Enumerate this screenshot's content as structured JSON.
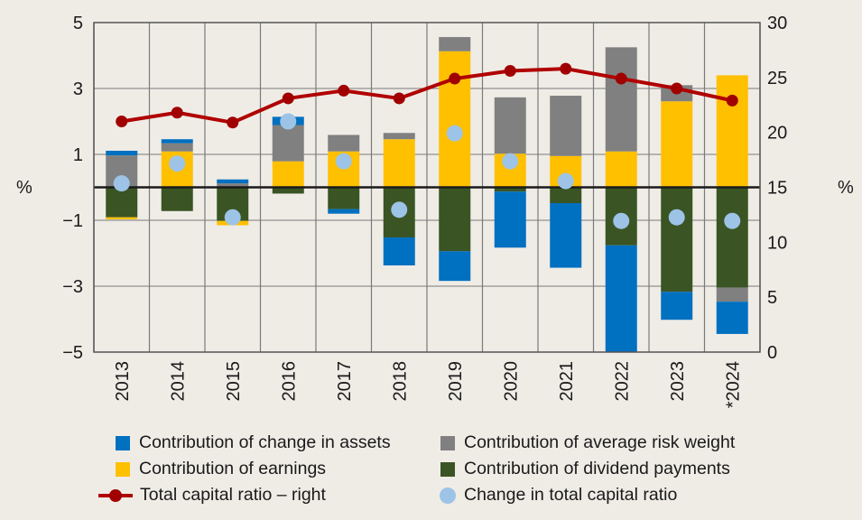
{
  "chart_data": {
    "type": "bar",
    "title": "",
    "xlabel": "",
    "ylabel": "%",
    "ylabel_right": "%",
    "stacked": true,
    "categories": [
      "2013",
      "2014",
      "2015",
      "2016",
      "2017",
      "2018",
      "2019",
      "2020",
      "2021",
      "2022",
      "2023",
      "*2024"
    ],
    "ylim": [
      -5,
      5
    ],
    "yticks": [
      "5",
      "3",
      "1",
      "−1",
      "−3",
      "−5"
    ],
    "ytick_values": [
      5,
      3,
      1,
      -1,
      -3,
      -5
    ],
    "ylim_right": [
      0,
      30
    ],
    "yticks_right": [
      "30",
      "25",
      "20",
      "15",
      "10",
      "5",
      "0"
    ],
    "ytick_values_right": [
      30,
      25,
      20,
      15,
      10,
      5,
      0
    ],
    "grid": true,
    "legend_position": "bottom",
    "series": [
      {
        "name": "Contribution of change in assets",
        "kind": "bar",
        "color": "#0070c0",
        "values": [
          0.14,
          0.12,
          0.12,
          0.25,
          -0.14,
          -0.85,
          -0.9,
          -1.7,
          -1.96,
          -3.24,
          -0.85,
          -0.98
        ]
      },
      {
        "name": "Contribution of earnings",
        "kind": "bar",
        "color": "#ffc000",
        "values": [
          -0.06,
          1.09,
          -0.13,
          0.79,
          1.09,
          1.46,
          4.13,
          1.02,
          0.95,
          1.09,
          2.61,
          3.4
        ]
      },
      {
        "name": "Contribution of average risk weight",
        "kind": "bar",
        "color": "#808080",
        "values": [
          0.97,
          0.25,
          0.12,
          1.1,
          0.5,
          0.19,
          0.43,
          1.71,
          1.83,
          3.16,
          0.49,
          -0.43
        ]
      },
      {
        "name": "Contribution of dividend payments",
        "kind": "bar",
        "color": "#3a5424",
        "values": [
          -0.91,
          -0.72,
          -1.02,
          -0.19,
          -0.66,
          -1.52,
          -1.94,
          -0.13,
          -0.48,
          -1.76,
          -3.17,
          -3.04
        ]
      },
      {
        "name": "Total capital ratio – right",
        "kind": "line",
        "axis": "right",
        "color": "#b00000",
        "values": [
          21.0,
          21.8,
          20.9,
          23.1,
          23.8,
          23.1,
          24.9,
          25.6,
          25.8,
          24.9,
          24.0,
          22.9
        ]
      },
      {
        "name": "Change in total capital ratio",
        "kind": "dot",
        "color": "#9dc3e6",
        "values": [
          0.12,
          0.72,
          -0.91,
          2.0,
          0.79,
          -0.68,
          1.64,
          0.79,
          0.19,
          -1.02,
          -0.91,
          -1.02
        ]
      }
    ]
  },
  "legend": {
    "assets": "Contribution of change in assets",
    "earnings": "Contribution of earnings",
    "total_ratio": "Total capital ratio – right",
    "risk_weight": "Contribution of average risk weight",
    "dividends": "Contribution of dividend payments",
    "change": "Change in total capital ratio"
  },
  "colors": {
    "assets": "#0070c0",
    "earnings": "#ffc000",
    "risk_weight": "#808080",
    "dividends": "#3a5424",
    "change": "#9dc3e6",
    "line": "#b00000",
    "line_marker": "#a00000"
  }
}
